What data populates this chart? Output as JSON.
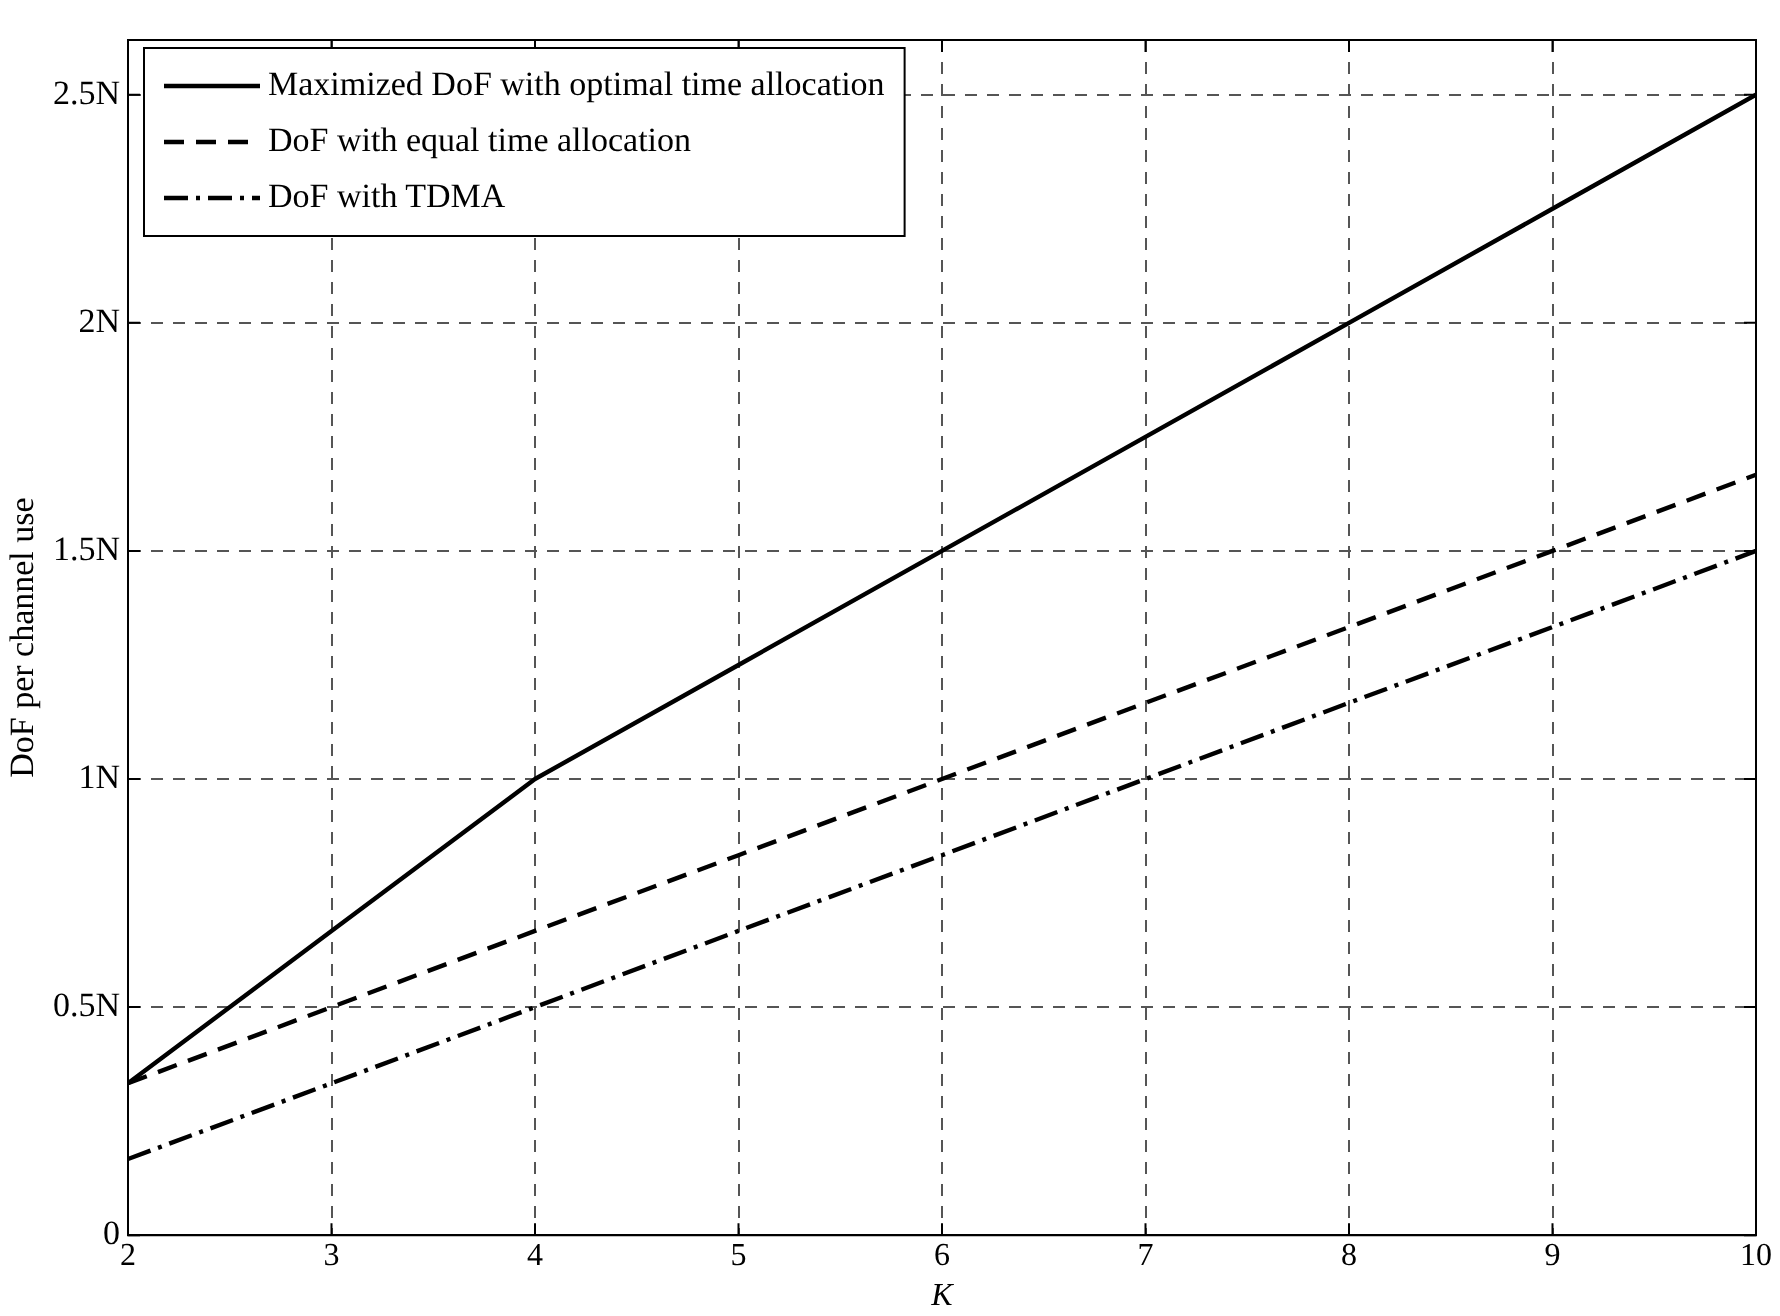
{
  "chart_data": {
    "type": "line",
    "xlabel": "K",
    "ylabel": "DoF per channel use",
    "x": [
      2,
      3,
      4,
      5,
      6,
      7,
      8,
      9,
      10
    ],
    "series": [
      {
        "name": "Maximized DoF with optimal time allocation",
        "color": "#000000",
        "line_style": "solid",
        "values": [
          0.333,
          0.667,
          1,
          1.25,
          1.5,
          1.75,
          2,
          2.25,
          2.5
        ]
      },
      {
        "name": "DoF with equal time allocation",
        "color": "#000000",
        "line_style": "dashed",
        "values": [
          0.333,
          0.5,
          0.667,
          0.833,
          1,
          1.167,
          1.333,
          1.5,
          1.667
        ]
      },
      {
        "name": "DoF with TDMA",
        "color": "#000000",
        "line_style": "dashdot",
        "values": [
          0.167,
          0.333,
          0.5,
          0.667,
          0.833,
          1,
          1.167,
          1.333,
          1.5
        ]
      }
    ],
    "xlim": [
      2,
      10
    ],
    "xticks": [
      2,
      3,
      4,
      5,
      6,
      7,
      8,
      9,
      10
    ],
    "ylim": [
      0,
      2.62
    ],
    "yticks": [
      0,
      {
        "value": 0.5,
        "label": "0.5N"
      },
      {
        "value": 1,
        "label": "1N"
      },
      {
        "value": 1.5,
        "label": "1.5N"
      },
      {
        "value": 2,
        "label": "2N"
      },
      {
        "value": 2.5,
        "label": "2.5N"
      }
    ],
    "grid": true,
    "legend": "top left",
    "marker": "none"
  }
}
